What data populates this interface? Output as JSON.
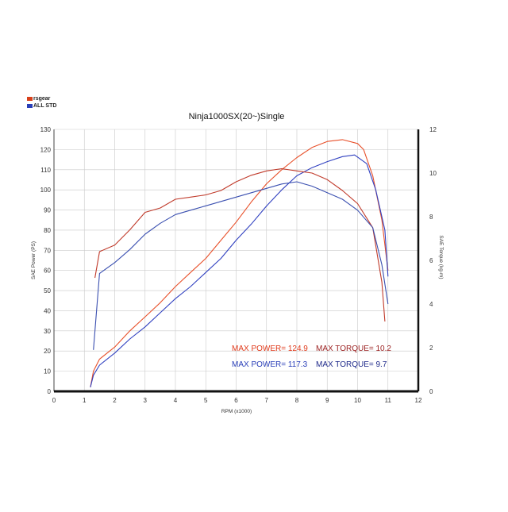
{
  "chart_data": {
    "type": "line",
    "title": "Ninja1000SX(20~)Single",
    "xlabel": "RPM (x1000)",
    "ylabel_left": "SAE Power (PS)",
    "ylabel_right": "SAE Torque (kg-m)",
    "xlim": [
      0,
      12
    ],
    "ylim_left": [
      0,
      130
    ],
    "ylim_right": [
      0,
      12
    ],
    "x_ticks": [
      "0",
      "1",
      "2",
      "3",
      "4",
      "5",
      "6",
      "7",
      "8",
      "9",
      "10",
      "11",
      "12"
    ],
    "y_ticks_left": [
      "0",
      "10",
      "20",
      "30",
      "40",
      "50",
      "60",
      "70",
      "80",
      "90",
      "100",
      "110",
      "120",
      "130"
    ],
    "y_ticks_right": [
      "0",
      "2",
      "4",
      "6",
      "8",
      "10",
      "12"
    ],
    "grid": true,
    "legend": [
      {
        "label": "rsgear",
        "color": "#d8401a"
      },
      {
        "label": "ALL STD",
        "color": "#2a3fb8"
      }
    ],
    "annotations": {
      "rs_power": "MAX POWER= 124.9",
      "rs_torque": "MAX TORQUE= 10.2",
      "std_power": "MAX POWER= 117.3",
      "std_torque": "MAX TORQUE= 9.7"
    },
    "series": [
      {
        "name": "rsgear",
        "axis": "left",
        "color": "#e8502a",
        "x": [
          1.2,
          1.3,
          1.5,
          2.0,
          2.5,
          3.0,
          3.5,
          4.0,
          4.5,
          5.0,
          5.5,
          6.0,
          6.5,
          7.0,
          7.5,
          8.0,
          8.5,
          9.0,
          9.5,
          10.0,
          10.2,
          10.5,
          10.8,
          11.0
        ],
        "y": [
          2,
          10,
          16,
          22,
          30,
          37,
          44,
          52,
          59,
          66,
          75,
          84,
          94,
          103,
          110,
          116,
          121,
          124,
          124.9,
          123,
          120,
          107,
          85,
          60
        ]
      },
      {
        "name": "ALL STD",
        "axis": "left",
        "color": "#3040c0",
        "x": [
          1.2,
          1.3,
          1.5,
          2.0,
          2.5,
          3.0,
          3.5,
          4.0,
          4.5,
          5.0,
          5.5,
          6.0,
          6.5,
          7.0,
          7.5,
          8.0,
          8.5,
          9.0,
          9.5,
          9.9,
          10.3,
          10.6,
          10.9,
          11.0
        ],
        "y": [
          2,
          8,
          13,
          19,
          26,
          32,
          39,
          46,
          52,
          59,
          66,
          75,
          83,
          92,
          100,
          107,
          111,
          114,
          116.5,
          117.3,
          113,
          100,
          80,
          57
        ]
      },
      {
        "name": "rsgear",
        "axis": "right",
        "color": "#c03a2a",
        "x": [
          1.35,
          1.5,
          2.0,
          2.5,
          3.0,
          3.5,
          4.0,
          4.5,
          5.0,
          5.5,
          6.0,
          6.5,
          7.0,
          7.5,
          8.0,
          8.5,
          9.0,
          9.5,
          10.0,
          10.5,
          10.8,
          10.9
        ],
        "y": [
          5.2,
          6.4,
          6.7,
          7.4,
          8.2,
          8.4,
          8.8,
          8.9,
          9.0,
          9.2,
          9.6,
          9.9,
          10.1,
          10.2,
          10.1,
          10.0,
          9.7,
          9.2,
          8.6,
          7.5,
          5.0,
          3.2
        ]
      },
      {
        "name": "ALL STD",
        "axis": "right",
        "color": "#3a4fb0",
        "x": [
          1.3,
          1.5,
          2.0,
          2.5,
          3.0,
          3.5,
          4.0,
          4.5,
          5.0,
          5.5,
          6.0,
          6.5,
          7.0,
          7.5,
          8.0,
          8.5,
          9.0,
          9.5,
          10.0,
          10.5,
          10.8,
          11.0
        ],
        "y": [
          1.9,
          5.4,
          5.9,
          6.5,
          7.2,
          7.7,
          8.1,
          8.3,
          8.5,
          8.7,
          8.9,
          9.1,
          9.3,
          9.5,
          9.6,
          9.4,
          9.1,
          8.8,
          8.3,
          7.5,
          5.8,
          4.0
        ]
      }
    ]
  }
}
